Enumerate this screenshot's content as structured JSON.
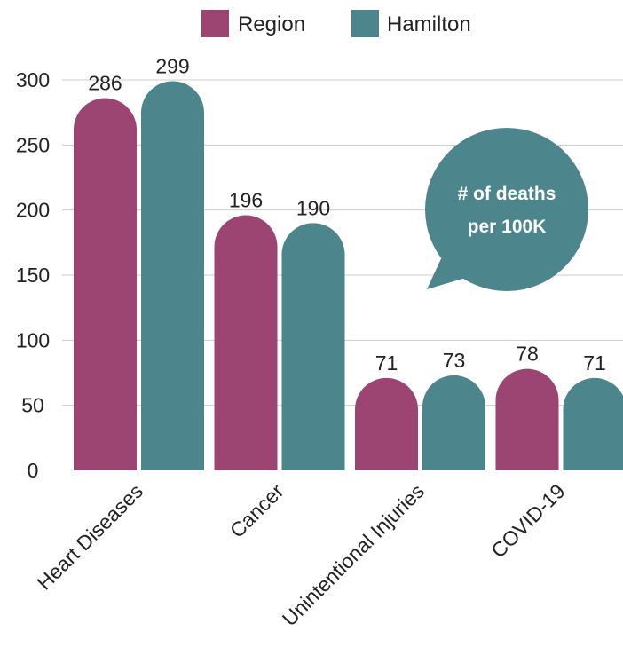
{
  "chart_data": {
    "type": "bar",
    "categories": [
      "Heart Diseases",
      "Cancer",
      "Unintentional Injuries",
      "COVID-19"
    ],
    "series": [
      {
        "name": "Region",
        "values": [
          286,
          196,
          71,
          78
        ],
        "color": "#9c4573"
      },
      {
        "name": "Hamilton",
        "values": [
          299,
          190,
          73,
          71
        ],
        "color": "#4d858c"
      }
    ],
    "ylim": [
      0,
      300
    ],
    "yticks": [
      0,
      50,
      100,
      150,
      200,
      250,
      300
    ],
    "grid": true,
    "legend": "top-center",
    "callout": {
      "lines": [
        "# of deaths",
        "per 100K"
      ],
      "color": "#4d858c"
    }
  }
}
